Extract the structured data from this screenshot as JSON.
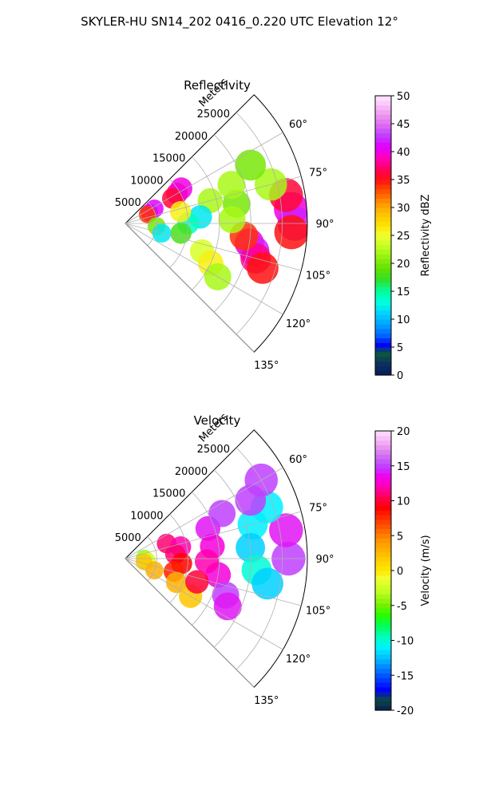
{
  "figure": {
    "suptitle": "SKYLER-HU  SN14_202  0416_0.220 UTC Elevation 12°"
  },
  "chart_data": [
    {
      "type": "heatmap",
      "projection": "polar-sector",
      "title": "Reflectivity",
      "range_label": "Meters",
      "range_ticks": [
        "5000",
        "10000",
        "15000",
        "20000",
        "25000"
      ],
      "range_max": 29000,
      "azimuth_ticks": [
        "60°",
        "75°",
        "90°",
        "105°",
        "120°",
        "135°"
      ],
      "azimuth_range_deg": [
        45,
        135
      ],
      "grid": true,
      "colorbar": {
        "label": "Reflectivity dBZ",
        "ticks": [
          "0",
          "5",
          "10",
          "15",
          "20",
          "25",
          "30",
          "35",
          "40",
          "45",
          "50"
        ],
        "min": 0,
        "max": 50
      },
      "cells": [
        {
          "az": 60,
          "r": 9500,
          "value": 38
        },
        {
          "az": 58,
          "r": 10500,
          "value": 40
        },
        {
          "az": 62,
          "r": 8500,
          "value": 36
        },
        {
          "az": 66,
          "r": 4200,
          "value": 39
        },
        {
          "az": 63,
          "r": 5200,
          "value": 41
        },
        {
          "az": 68,
          "r": 3800,
          "value": 34
        },
        {
          "az": 85,
          "r": 26500,
          "value": 40
        },
        {
          "az": 90,
          "r": 27000,
          "value": 42
        },
        {
          "az": 80,
          "r": 26000,
          "value": 36
        },
        {
          "az": 93,
          "r": 26500,
          "value": 35
        },
        {
          "az": 99,
          "r": 20000,
          "value": 40
        },
        {
          "az": 102,
          "r": 21000,
          "value": 42
        },
        {
          "az": 105,
          "r": 21500,
          "value": 38
        },
        {
          "az": 96,
          "r": 19000,
          "value": 34
        },
        {
          "az": 108,
          "r": 23000,
          "value": 35
        },
        {
          "az": 75,
          "r": 14000,
          "value": 22
        },
        {
          "az": 80,
          "r": 18000,
          "value": 20
        },
        {
          "az": 70,
          "r": 18000,
          "value": 22
        },
        {
          "az": 85,
          "r": 12000,
          "value": 12
        },
        {
          "az": 90,
          "r": 10000,
          "value": 14
        },
        {
          "az": 100,
          "r": 9000,
          "value": 18
        },
        {
          "az": 110,
          "r": 13000,
          "value": 24
        },
        {
          "az": 115,
          "r": 15000,
          "value": 26
        },
        {
          "az": 120,
          "r": 17000,
          "value": 22
        },
        {
          "az": 95,
          "r": 5000,
          "value": 20
        },
        {
          "az": 105,
          "r": 6000,
          "value": 12
        },
        {
          "az": 75,
          "r": 24000,
          "value": 22
        },
        {
          "az": 65,
          "r": 22000,
          "value": 20
        },
        {
          "az": 88,
          "r": 17000,
          "value": 22
        },
        {
          "az": 78,
          "r": 9000,
          "value": 26
        }
      ]
    },
    {
      "type": "heatmap",
      "projection": "polar-sector",
      "title": "Velocity",
      "range_label": "Meters",
      "range_ticks": [
        "5000",
        "10000",
        "15000",
        "20000",
        "25000"
      ],
      "range_max": 29000,
      "azimuth_ticks": [
        "60°",
        "75°",
        "90°",
        "105°",
        "120°",
        "135°"
      ],
      "azimuth_range_deg": [
        45,
        135
      ],
      "grid": true,
      "colorbar": {
        "label": "Velocity (m/s)",
        "ticks": [
          "-20",
          "-15",
          "-10",
          "-5",
          "0",
          "5",
          "10",
          "15",
          "20"
        ],
        "min": -20,
        "max": 20
      },
      "cells": [
        {
          "az": 70,
          "r": 7000,
          "value": 11
        },
        {
          "az": 78,
          "r": 9000,
          "value": 12
        },
        {
          "az": 85,
          "r": 8000,
          "value": 11
        },
        {
          "az": 95,
          "r": 9000,
          "value": 9
        },
        {
          "az": 105,
          "r": 8000,
          "value": 8
        },
        {
          "az": 115,
          "r": 9000,
          "value": 3
        },
        {
          "az": 120,
          "r": 12000,
          "value": 2
        },
        {
          "az": 70,
          "r": 14000,
          "value": 14
        },
        {
          "az": 65,
          "r": 17000,
          "value": 15
        },
        {
          "az": 82,
          "r": 14000,
          "value": 13
        },
        {
          "az": 100,
          "r": 15000,
          "value": 13
        },
        {
          "az": 110,
          "r": 17000,
          "value": 15
        },
        {
          "az": 115,
          "r": 18000,
          "value": 14
        },
        {
          "az": 75,
          "r": 21000,
          "value": -11
        },
        {
          "az": 85,
          "r": 20000,
          "value": -12
        },
        {
          "az": 95,
          "r": 21000,
          "value": -10
        },
        {
          "az": 100,
          "r": 23000,
          "value": -12
        },
        {
          "az": 90,
          "r": 26000,
          "value": 15
        },
        {
          "az": 80,
          "r": 26000,
          "value": 14
        },
        {
          "az": 70,
          "r": 24000,
          "value": -11
        },
        {
          "az": 65,
          "r": 22000,
          "value": 15
        },
        {
          "az": 60,
          "r": 25000,
          "value": 15
        },
        {
          "az": 88,
          "r": 3000,
          "value": -4
        },
        {
          "az": 95,
          "r": 3500,
          "value": -2
        },
        {
          "az": 100,
          "r": 3000,
          "value": 2
        },
        {
          "az": 112,
          "r": 5000,
          "value": 3
        },
        {
          "az": 108,
          "r": 12000,
          "value": 10
        },
        {
          "az": 92,
          "r": 13000,
          "value": 12
        }
      ]
    }
  ]
}
